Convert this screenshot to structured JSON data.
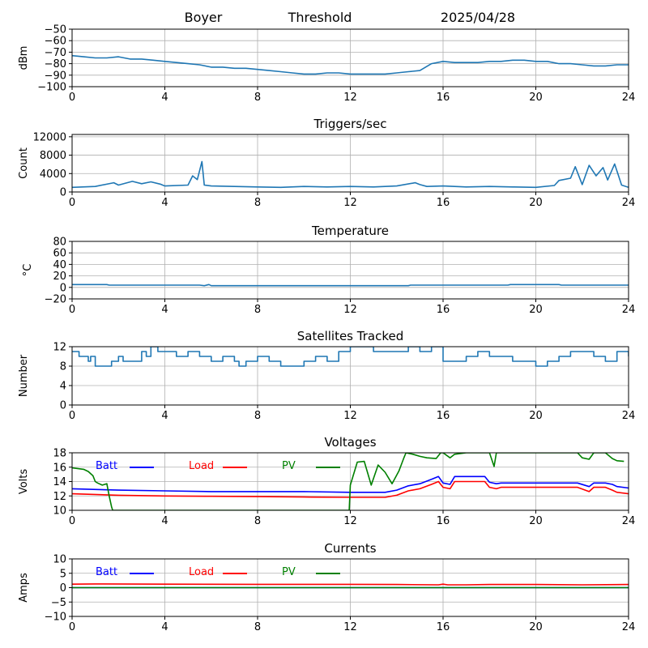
{
  "header": {
    "station": "Boyer",
    "mode": "Threshold",
    "date": "2025/04/28"
  },
  "chart_data": [
    {
      "id": "threshold",
      "type": "line",
      "title": "",
      "ylabel": "dBm",
      "xlim": [
        0,
        24
      ],
      "ylim": [
        -100,
        -50
      ],
      "xticks": [
        0,
        4,
        8,
        12,
        16,
        20,
        24
      ],
      "yticks": [
        -100,
        -90,
        -80,
        -70,
        -60,
        -50
      ],
      "ytick_labels": [
        "−100",
        "−90",
        "−80",
        "−70",
        "−60",
        "−50"
      ],
      "grid": true,
      "series": [
        {
          "color": "#1f77b4",
          "x": [
            0,
            0.5,
            1,
            1.5,
            2,
            2.5,
            3,
            3.5,
            4,
            4.5,
            5,
            5.5,
            6,
            6.5,
            7,
            7.5,
            8,
            8.5,
            9,
            9.5,
            10,
            10.5,
            11,
            11.5,
            12,
            12.5,
            13,
            13.5,
            14,
            14.5,
            15,
            15.5,
            16,
            16.5,
            17,
            17.5,
            18,
            18.5,
            19,
            19.5,
            20,
            20.5,
            21,
            21.5,
            22,
            22.5,
            23,
            23.5,
            24
          ],
          "y": [
            -73,
            -74,
            -75,
            -75,
            -74,
            -76,
            -76,
            -77,
            -78,
            -79,
            -80,
            -81,
            -83,
            -83,
            -84,
            -84,
            -85,
            -86,
            -87,
            -88,
            -89,
            -89,
            -88,
            -88,
            -89,
            -89,
            -89,
            -89,
            -88,
            -87,
            -86,
            -80,
            -78,
            -79,
            -79,
            -79,
            -78,
            -78,
            -77,
            -77,
            -78,
            -78,
            -80,
            -80,
            -81,
            -82,
            -82,
            -81,
            -81
          ]
        }
      ]
    },
    {
      "id": "triggers",
      "type": "line",
      "title": "Triggers/sec",
      "ylabel": "Count",
      "xlim": [
        0,
        24
      ],
      "ylim": [
        0,
        12500
      ],
      "xticks": [
        0,
        4,
        8,
        12,
        16,
        20,
        24
      ],
      "yticks": [
        0,
        4000,
        8000,
        12000
      ],
      "ytick_labels": [
        "0",
        "4000",
        "8000",
        "12000"
      ],
      "grid": true,
      "series": [
        {
          "color": "#1f77b4",
          "x": [
            0,
            1,
            1.8,
            2,
            2.6,
            3,
            3.4,
            3.8,
            4,
            5,
            5.2,
            5.4,
            5.6,
            5.7,
            6,
            7,
            8,
            9,
            10,
            11,
            12,
            13,
            14,
            14.8,
            15,
            15.3,
            16,
            17,
            18,
            19,
            20,
            20.8,
            21,
            21.5,
            21.7,
            22,
            22.3,
            22.6,
            22.9,
            23.1,
            23.4,
            23.7,
            24
          ],
          "y": [
            1000,
            1200,
            2000,
            1500,
            2300,
            1800,
            2200,
            1700,
            1300,
            1500,
            3500,
            2700,
            6600,
            1500,
            1300,
            1200,
            1100,
            1000,
            1200,
            1100,
            1200,
            1100,
            1300,
            2000,
            1600,
            1200,
            1300,
            1100,
            1200,
            1100,
            1000,
            1400,
            2500,
            3000,
            5500,
            1600,
            5800,
            3500,
            5300,
            2600,
            6100,
            1500,
            1000
          ]
        }
      ]
    },
    {
      "id": "temperature",
      "type": "line",
      "title": "Temperature",
      "ylabel": "°C",
      "xlim": [
        0,
        24
      ],
      "ylim": [
        -20,
        80
      ],
      "xticks": [
        0,
        4,
        8,
        12,
        16,
        20,
        24
      ],
      "yticks": [
        -20,
        0,
        20,
        40,
        60,
        80
      ],
      "ytick_labels": [
        "−20",
        "0",
        "20",
        "40",
        "60",
        "80"
      ],
      "grid": true,
      "series": [
        {
          "color": "#1f77b4",
          "x": [
            0,
            1.5,
            1.6,
            5.5,
            5.7,
            5.9,
            6,
            12,
            14.5,
            14.6,
            18.8,
            18.9,
            21,
            21.1,
            24
          ],
          "y": [
            5,
            5,
            4,
            4,
            3,
            5,
            3,
            3,
            3,
            4,
            4,
            5,
            5,
            4,
            4
          ]
        }
      ]
    },
    {
      "id": "satellites",
      "type": "line",
      "title": "Satellites Tracked",
      "ylabel": "Number",
      "xlim": [
        0,
        24
      ],
      "ylim": [
        0,
        12
      ],
      "xticks": [
        0,
        4,
        8,
        12,
        16,
        20,
        24
      ],
      "yticks": [
        0,
        4,
        8,
        12
      ],
      "ytick_labels": [
        "0",
        "4",
        "8",
        "12"
      ],
      "grid": true,
      "series": [
        {
          "color": "#1f77b4",
          "step": true,
          "x": [
            0,
            0.3,
            0.7,
            0.8,
            1,
            1.7,
            2,
            2.2,
            3,
            3.2,
            3.4,
            3.7,
            4.5,
            5,
            5.5,
            6,
            6.5,
            7,
            7.2,
            7.5,
            8,
            8.5,
            9,
            10,
            10.5,
            11,
            11.5,
            12,
            13,
            14,
            14.5,
            15,
            15.5,
            16,
            17,
            17.5,
            18,
            19,
            20,
            20.5,
            21,
            21.5,
            22,
            22.5,
            23,
            23.5,
            24
          ],
          "y": [
            11,
            10,
            9,
            10,
            8,
            9,
            10,
            9,
            11,
            10,
            12,
            11,
            10,
            11,
            10,
            9,
            10,
            9,
            8,
            9,
            10,
            9,
            8,
            9,
            10,
            9,
            11,
            12,
            11,
            11,
            12,
            11,
            12,
            9,
            10,
            11,
            10,
            9,
            8,
            9,
            10,
            11,
            11,
            10,
            9,
            11,
            10
          ]
        }
      ]
    },
    {
      "id": "voltages",
      "type": "line",
      "title": "Voltages",
      "ylabel": "Volts",
      "xlim": [
        0,
        24
      ],
      "ylim": [
        10,
        18
      ],
      "xticks": [
        0,
        4,
        8,
        12,
        16,
        20,
        24
      ],
      "yticks": [
        10,
        12,
        14,
        16,
        18
      ],
      "ytick_labels": [
        "10",
        "12",
        "14",
        "16",
        "18"
      ],
      "grid": true,
      "legend": "top-left",
      "series": [
        {
          "name": "Batt",
          "color": "#0000ff",
          "x": [
            0,
            2,
            4,
            6,
            8,
            10,
            12,
            13.5,
            14,
            14.5,
            15,
            15.5,
            15.8,
            16,
            16.3,
            16.5,
            17,
            17.5,
            17.8,
            18,
            18.3,
            18.5,
            19,
            20,
            21,
            21.8,
            22.3,
            22.5,
            23,
            23.3,
            23.5,
            24
          ],
          "y": [
            13,
            12.8,
            12.7,
            12.6,
            12.6,
            12.6,
            12.5,
            12.5,
            12.8,
            13.4,
            13.7,
            14.3,
            14.7,
            13.8,
            13.6,
            14.7,
            14.7,
            14.7,
            14.7,
            13.9,
            13.7,
            13.8,
            13.8,
            13.8,
            13.8,
            13.8,
            13.3,
            13.8,
            13.8,
            13.6,
            13.3,
            13.1
          ]
        },
        {
          "name": "Load",
          "color": "#ff0000",
          "x": [
            0,
            2,
            4,
            6,
            8,
            10,
            12,
            13.5,
            14,
            14.5,
            15,
            15.5,
            15.8,
            16,
            16.3,
            16.5,
            17,
            17.5,
            17.8,
            18,
            18.3,
            18.5,
            19,
            20,
            21,
            21.8,
            22.3,
            22.5,
            23,
            23.3,
            23.5,
            24
          ],
          "y": [
            12.3,
            12.1,
            12,
            11.95,
            11.9,
            11.85,
            11.8,
            11.8,
            12.1,
            12.7,
            13,
            13.6,
            14,
            13.2,
            13,
            14,
            14,
            14,
            14,
            13.2,
            13,
            13.2,
            13.2,
            13.2,
            13.2,
            13.2,
            12.6,
            13.2,
            13.2,
            12.8,
            12.5,
            12.3
          ]
        },
        {
          "name": "PV",
          "color": "#008000",
          "x": [
            0,
            0.5,
            0.7,
            0.9,
            1,
            1.1,
            1.3,
            1.5,
            1.6,
            1.7,
            1.75,
            11.95,
            12,
            12.3,
            12.6,
            12.9,
            13.2,
            13.5,
            13.8,
            14.1,
            14.3,
            14.4,
            14.7,
            15,
            15.3,
            15.7,
            15.9,
            16,
            16.3,
            16.5,
            17,
            17.5,
            18,
            18.2,
            18.3,
            18.5,
            21.8,
            22,
            22.3,
            22.5,
            23,
            23.3,
            23.5,
            23.8
          ],
          "y": [
            15.9,
            15.7,
            15.4,
            14.8,
            14,
            13.8,
            13.5,
            13.7,
            12,
            10.5,
            10,
            10,
            13.5,
            16.7,
            16.8,
            13.5,
            16.3,
            15.3,
            13.7,
            15.5,
            17.2,
            18,
            17.8,
            17.5,
            17.3,
            17.2,
            18,
            18,
            17.3,
            17.8,
            18,
            18,
            18,
            16.1,
            18,
            18,
            18,
            17.3,
            17.1,
            18,
            18,
            17.2,
            16.9,
            16.8
          ]
        }
      ]
    },
    {
      "id": "currents",
      "type": "line",
      "title": "Currents",
      "ylabel": "Amps",
      "xlim": [
        0,
        24
      ],
      "ylim": [
        -10,
        10
      ],
      "xticks": [
        0,
        4,
        8,
        12,
        16,
        20,
        24
      ],
      "yticks": [
        -10,
        -5,
        0,
        5,
        10
      ],
      "ytick_labels": [
        "−10",
        "−5",
        "0",
        "5",
        "10"
      ],
      "grid": true,
      "legend": "top-left",
      "series": [
        {
          "name": "Batt",
          "color": "#0000ff",
          "x": [
            0,
            24
          ],
          "y": [
            0,
            0
          ]
        },
        {
          "name": "Load",
          "color": "#ff0000",
          "x": [
            0,
            1,
            4,
            8,
            12,
            14,
            15.8,
            16,
            16.2,
            17,
            18,
            20,
            22,
            24
          ],
          "y": [
            1.2,
            1.3,
            1.2,
            1.15,
            1.15,
            1.1,
            1,
            1.2,
            1,
            1,
            1.1,
            1.1,
            1,
            1.1
          ]
        },
        {
          "name": "PV",
          "color": "#008000",
          "x": [
            0,
            24
          ],
          "y": [
            0,
            0
          ]
        }
      ]
    }
  ]
}
